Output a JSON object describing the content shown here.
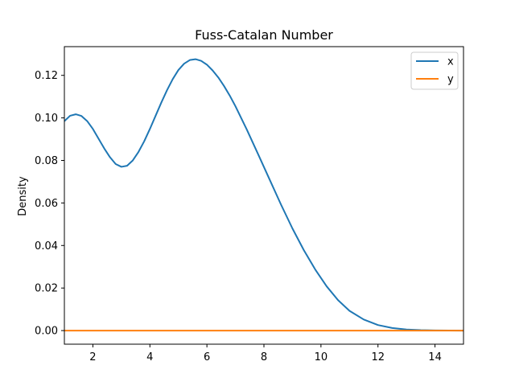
{
  "chart_data": {
    "type": "line",
    "title": "Fuss-Catalan Number",
    "xlabel": "",
    "ylabel": "Density",
    "xlim": [
      1.0,
      15.0
    ],
    "ylim": [
      -0.0064,
      0.1335
    ],
    "xticks": [
      2,
      4,
      6,
      8,
      10,
      12,
      14
    ],
    "xtick_labels": [
      "2",
      "4",
      "6",
      "8",
      "10",
      "12",
      "14"
    ],
    "yticks": [
      0.0,
      0.02,
      0.04,
      0.06,
      0.08,
      0.1,
      0.12
    ],
    "ytick_labels": [
      "0.00",
      "0.02",
      "0.04",
      "0.06",
      "0.08",
      "0.10",
      "0.12"
    ],
    "grid": false,
    "legend_position": "top-right",
    "series": [
      {
        "name": "x",
        "color": "#1f77b4",
        "x": [
          1.0,
          1.2,
          1.4,
          1.6,
          1.8,
          2.0,
          2.2,
          2.4,
          2.6,
          2.8,
          3.0,
          3.2,
          3.4,
          3.6,
          3.8,
          4.0,
          4.2,
          4.4,
          4.6,
          4.8,
          5.0,
          5.2,
          5.4,
          5.6,
          5.8,
          6.0,
          6.2,
          6.4,
          6.6,
          6.8,
          7.0,
          7.4,
          7.8,
          8.2,
          8.6,
          9.0,
          9.4,
          9.8,
          10.2,
          10.6,
          11.0,
          11.5,
          12.0,
          12.5,
          13.0,
          13.5,
          14.0,
          14.5,
          15.0
        ],
        "y": [
          0.0985,
          0.101,
          0.1017,
          0.1009,
          0.0985,
          0.0948,
          0.0902,
          0.0856,
          0.0815,
          0.0783,
          0.077,
          0.0775,
          0.08,
          0.084,
          0.089,
          0.0948,
          0.101,
          0.1072,
          0.113,
          0.1182,
          0.1225,
          0.1255,
          0.1272,
          0.1276,
          0.1268,
          0.125,
          0.1223,
          0.119,
          0.115,
          0.1105,
          0.1055,
          0.0945,
          0.0828,
          0.071,
          0.0592,
          0.048,
          0.0378,
          0.0287,
          0.0208,
          0.0143,
          0.0093,
          0.0052,
          0.0026,
          0.0012,
          0.0005,
          0.0002,
          6e-05,
          2e-05,
          0.0
        ]
      },
      {
        "name": "y",
        "color": "#ff7f0e",
        "x": [
          1.0,
          15.0
        ],
        "y": [
          0.0,
          0.0
        ]
      }
    ]
  }
}
